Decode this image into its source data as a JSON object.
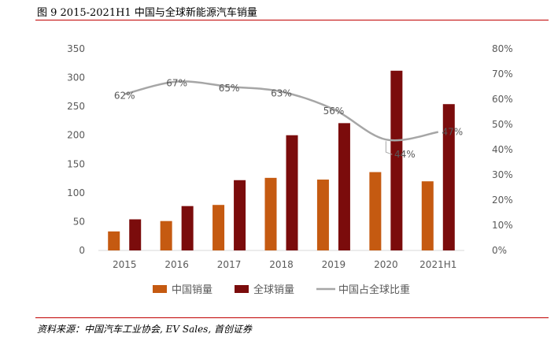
{
  "figure_title": "图 9 2015-2021H1 中国与全球新能源汽车销量",
  "source_note": "资料来源：中国汽车工业协会, EV Sales, 首创证券",
  "chart_data": {
    "type": "bar",
    "categories": [
      "2015",
      "2016",
      "2017",
      "2018",
      "2019",
      "2020",
      "2021H1"
    ],
    "series": [
      {
        "name": "中国销量",
        "kind": "bar",
        "axis": "left",
        "color": "#c55a11",
        "values": [
          33,
          51,
          79,
          126,
          123,
          136,
          120
        ]
      },
      {
        "name": "全球销量",
        "kind": "bar",
        "axis": "left",
        "color": "#7b0c0c",
        "values": [
          54,
          77,
          122,
          200,
          221,
          312,
          254
        ]
      },
      {
        "name": "中国占全球比重",
        "kind": "line",
        "axis": "right",
        "color": "#a6a6a6",
        "values": [
          62,
          67,
          65,
          63,
          56,
          44,
          47
        ]
      }
    ],
    "line_labels": [
      "62%",
      "67%",
      "65%",
      "63%",
      "56%",
      "44%",
      "47%"
    ],
    "y_left": {
      "min": 0,
      "max": 350,
      "ticks": [
        "0",
        "50",
        "100",
        "150",
        "200",
        "250",
        "300",
        "350"
      ]
    },
    "y_right": {
      "min": 0,
      "max": 80,
      "ticks": [
        "0%",
        "10%",
        "20%",
        "30%",
        "40%",
        "50%",
        "60%",
        "70%",
        "80%"
      ]
    },
    "xlabel": "",
    "ylabel": "",
    "grid": false,
    "legend": "bottom"
  }
}
